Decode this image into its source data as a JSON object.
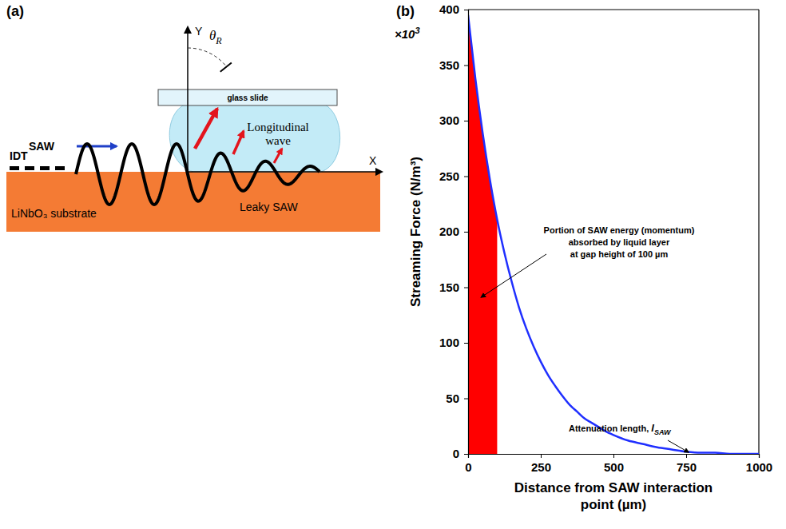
{
  "diagram": {
    "panel_label": "(a)",
    "axis_y": "Y",
    "axis_x": "X",
    "angle": {
      "symbol": "θ",
      "subscript": "R"
    },
    "glass_slide": "glass slide",
    "liquid": "Longitudinal wave",
    "idt": "IDT",
    "saw": "SAW",
    "leaky_saw": "Leaky SAW",
    "substrate": "LiNbO₃ substrate"
  },
  "chart_data": {
    "type": "line",
    "panel_label": "(b)",
    "y_multiplier": {
      "text": "×10",
      "superscript": "3"
    },
    "x_label": "Distance from SAW interaction point (µm)",
    "y_label": "Streaming Force (N/m³)",
    "x": [
      0,
      25,
      50,
      75,
      100,
      125,
      150,
      175,
      200,
      225,
      250,
      275,
      300,
      325,
      350,
      375,
      400,
      425,
      450,
      475,
      500,
      550,
      600,
      650,
      700,
      750,
      800,
      850,
      900,
      950,
      1000
    ],
    "series": [
      {
        "color": "#1f2fff",
        "values": [
          395,
          338,
          289,
          247,
          211,
          181,
          155,
          132,
          113,
          97,
          83,
          71,
          61,
          52,
          44,
          38,
          32,
          28,
          24,
          20,
          17,
          12,
          9,
          6,
          4,
          2,
          1,
          1,
          0,
          0,
          0
        ]
      }
    ],
    "filled_area": {
      "x_range": [
        0,
        100
      ],
      "color": "#ff0000"
    },
    "annotations": [
      {
        "lines": [
          "Portion of SAW energy (momentum)",
          "absorbed by liquid layer",
          "at gap height of 100 µm"
        ]
      },
      {
        "text": "Attenuation length, ",
        "variable": "l",
        "subscript": "SAW",
        "x": 750
      }
    ],
    "xlim": [
      0,
      1000
    ],
    "xticks": [
      0,
      250,
      500,
      750,
      1000
    ],
    "ylim": [
      0,
      400
    ],
    "yticks": [
      0,
      50,
      100,
      150,
      200,
      250,
      300,
      350,
      400
    ],
    "grid": false
  }
}
